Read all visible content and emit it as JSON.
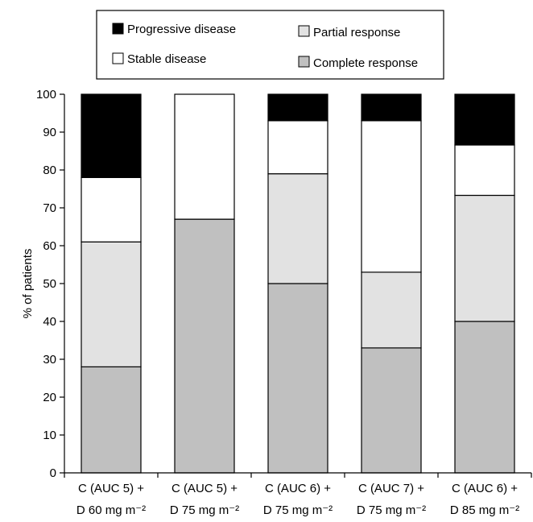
{
  "chart_data": {
    "type": "bar",
    "stacked": true,
    "title": "",
    "xlabel": "",
    "ylabel": "% of patients",
    "ylim": [
      0,
      100
    ],
    "yticks": [
      0,
      10,
      20,
      30,
      40,
      50,
      60,
      70,
      80,
      90,
      100
    ],
    "grid": false,
    "legend_position": "top",
    "categories": [
      [
        "C (AUC 5) +",
        "D 60 mg m⁻²"
      ],
      [
        "C (AUC 5) +",
        "D 75 mg m⁻²"
      ],
      [
        "C (AUC 6) +",
        "D 75 mg m⁻²"
      ],
      [
        "C (AUC 7) +",
        "D 75 mg m⁻²"
      ],
      [
        "C (AUC 6) +",
        "D 85 mg m⁻²"
      ]
    ],
    "series": [
      {
        "name": "Complete response",
        "color": "#c0c0c0",
        "values": [
          28,
          67,
          50,
          33,
          40
        ]
      },
      {
        "name": "Partial response",
        "color": "#e2e2e2",
        "values": [
          33,
          0,
          29,
          20,
          33.3
        ]
      },
      {
        "name": "Stable disease",
        "color": "#ffffff",
        "values": [
          17,
          33,
          14,
          40,
          13.3
        ]
      },
      {
        "name": "Progressive disease",
        "color": "#000000",
        "values": [
          22,
          0,
          7,
          7,
          13.4
        ]
      }
    ],
    "legend": {
      "left_column": [
        "Progressive disease",
        "Stable disease"
      ],
      "right_column": [
        "Partial response",
        "Complete response"
      ]
    }
  }
}
